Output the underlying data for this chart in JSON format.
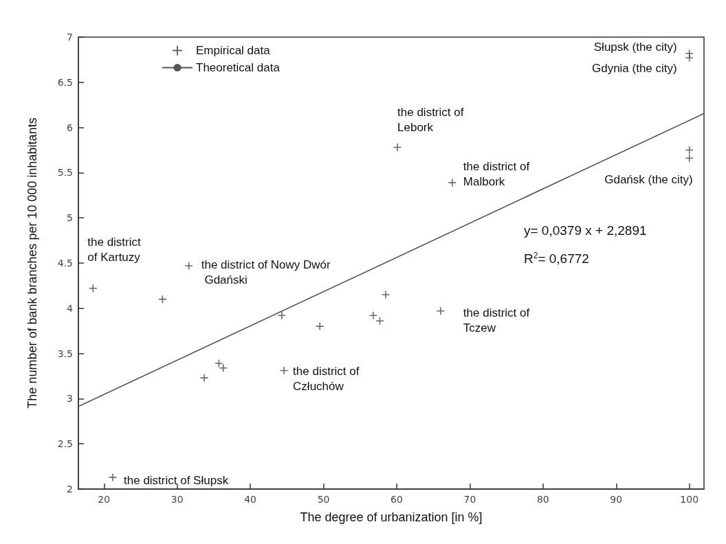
{
  "chart_data": {
    "type": "scatter",
    "xlabel": "The degree of urbanization [in %]",
    "ylabel": "The number of bank branches per 10 000 inhabitants",
    "xlim": [
      16.5,
      102
    ],
    "xticks": [
      20,
      30,
      40,
      50,
      60,
      70,
      80,
      90,
      100
    ],
    "ylim": [
      2,
      7
    ],
    "yticks": [
      2,
      2.5,
      3,
      3.5,
      4,
      4.5,
      5,
      5.5,
      6,
      6.5,
      7
    ],
    "grid": false,
    "legend": "top left",
    "marker": "cross",
    "series": [
      {
        "name": "Empirical data",
        "color": "#404040",
        "x": [
          18.5,
          28.0,
          31.6,
          44.3,
          49.5,
          56.8,
          57.7,
          58.5,
          33.7,
          35.7,
          36.3,
          44.6,
          21.2,
          66.0,
          60.1,
          67.6,
          100,
          100,
          100,
          100
        ],
        "values": [
          4.22,
          4.1,
          4.47,
          3.92,
          3.8,
          3.92,
          3.86,
          4.15,
          3.23,
          3.39,
          3.34,
          3.31,
          2.13,
          3.97,
          5.78,
          5.39,
          6.82,
          6.77,
          5.75,
          5.66
        ]
      },
      {
        "name": "Theoretical data",
        "type": "line",
        "color": "#555555",
        "marker": "none",
        "line_style": "solid",
        "x": [
          16.5,
          102
        ],
        "values": [
          2.914,
          6.155
        ]
      }
    ],
    "annotations": [
      {
        "text": "the district of Kartuzy",
        "x": 18.5,
        "y": 4.22
      },
      {
        "text": "the district of Nowy Dwór Gdański",
        "x": 31.6,
        "y": 4.47
      },
      {
        "text": "the district of Lebork",
        "x": 60.1,
        "y": 5.78
      },
      {
        "text": "the district of Malbork",
        "x": 67.6,
        "y": 5.39
      },
      {
        "text": "the district of Tczew",
        "x": 66.0,
        "y": 3.97
      },
      {
        "text": "the district of Człuchów",
        "x": 44.6,
        "y": 3.31
      },
      {
        "text": "the district of Słupsk",
        "x": 21.2,
        "y": 2.13
      },
      {
        "text": "Słupsk (the city)",
        "x": 100,
        "y": 6.82
      },
      {
        "text": "Gdynia (the city)",
        "x": 100,
        "y": 6.77
      },
      {
        "text": "Gdańsk (the city)",
        "x": 100,
        "y": 5.66
      },
      "y= 0,0379 x + 2,2891",
      "R$^{2}$= 0,6772"
    ]
  }
}
